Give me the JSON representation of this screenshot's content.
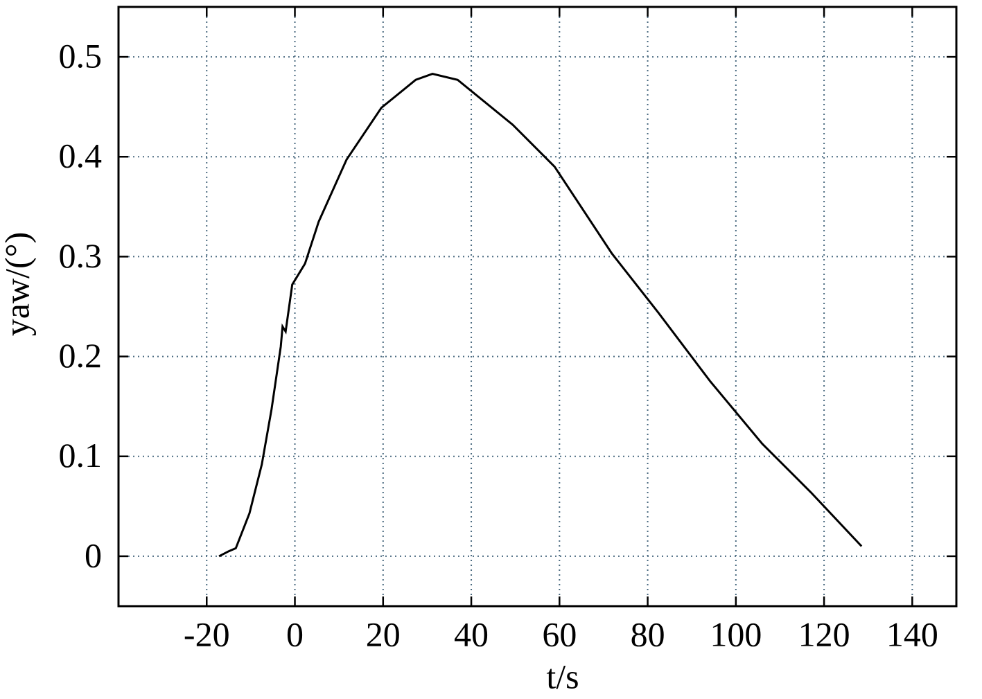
{
  "chart_data": {
    "type": "line",
    "x_label": "t/s",
    "y_label": "yaw/(°)",
    "x": [
      -17.2,
      -15.0,
      -13.4,
      -10.3,
      -7.5,
      -5.3,
      -3.2,
      -2.8,
      -2.1,
      -0.6,
      2.3,
      5.4,
      11.7,
      19.6,
      27.4,
      31.2,
      36.9,
      49.4,
      58.9,
      71.9,
      82.4,
      94.2,
      106.0,
      117.0,
      128.5
    ],
    "series": [
      {
        "color": "#000000",
        "values": [
          0,
          0.005,
          0.008,
          0.043,
          0.092,
          0.147,
          0.21,
          0.23,
          0.225,
          0.272,
          0.293,
          0.335,
          0.397,
          0.449,
          0.477,
          0.483,
          0.477,
          0.432,
          0.39,
          0.303,
          0.244,
          0.175,
          0.1125,
          0.064,
          0.01
        ]
      }
    ],
    "xlim": [
      -40,
      150
    ],
    "xticks": [
      -20,
      0,
      20,
      40,
      60,
      80,
      100,
      120,
      140
    ],
    "ylim": [
      -0.05,
      0.55
    ],
    "yticks": [
      0,
      0.1,
      0.2,
      0.3,
      0.4,
      0.5
    ],
    "grid": true
  }
}
